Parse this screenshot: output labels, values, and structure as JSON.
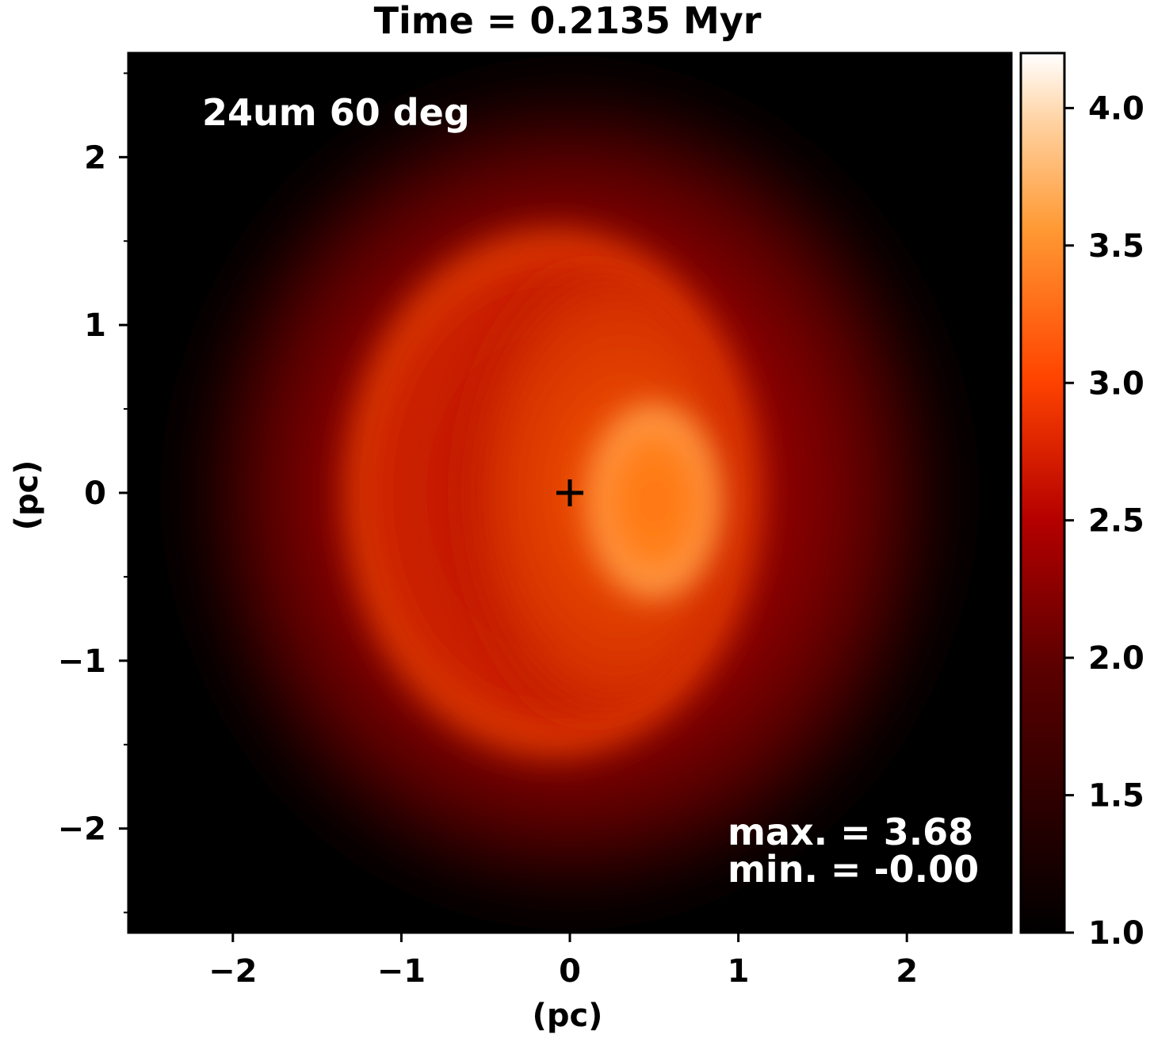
{
  "chart_data": {
    "type": "heatmap",
    "title": "Time = 0.2135 Myr",
    "xlabel": "(pc)",
    "ylabel": "(pc)",
    "xlim": [
      -2.62,
      2.62
    ],
    "ylim": [
      -2.62,
      2.62
    ],
    "x_ticks": [
      -2,
      -1,
      0,
      1,
      2
    ],
    "y_ticks": [
      -2,
      -1,
      0,
      1,
      2
    ],
    "x_tick_labels": [
      "−2",
      "−1",
      "0",
      "1",
      "2"
    ],
    "y_tick_labels": [
      "−2",
      "−1",
      "0",
      "1",
      "2"
    ],
    "annotations": {
      "label": "24um 60 deg",
      "max_text": "max. = 3.68",
      "min_text": "min. = -0.00"
    },
    "marker": {
      "symbol": "+",
      "x": 0,
      "y": 0
    },
    "colorbar": {
      "min": 1.0,
      "max": 4.2,
      "ticks": [
        1.0,
        1.5,
        2.0,
        2.5,
        3.0,
        3.5,
        4.0
      ],
      "tick_labels": [
        "1.0",
        "1.5",
        "2.0",
        "2.5",
        "3.0",
        "3.5",
        "4.0"
      ],
      "colormap": "gist_heat"
    },
    "field_features": [
      {
        "kind": "background",
        "value": 1.0
      },
      {
        "kind": "halo",
        "cx": 0.0,
        "cy": 0.0,
        "rx": 2.4,
        "ry": 2.6,
        "value": 2.3
      },
      {
        "kind": "outer-shell",
        "cx": -0.1,
        "cy": 0.0,
        "rx": 1.3,
        "ry": 1.65,
        "value": 2.8
      },
      {
        "kind": "inner-disc",
        "cx": 0.05,
        "cy": 0.0,
        "rx": 0.9,
        "ry": 1.35,
        "value": 2.7
      },
      {
        "kind": "bright-rim",
        "cx": 0.5,
        "cy": -0.05,
        "rx": 0.42,
        "ry": 0.62,
        "value": 3.68
      }
    ]
  }
}
